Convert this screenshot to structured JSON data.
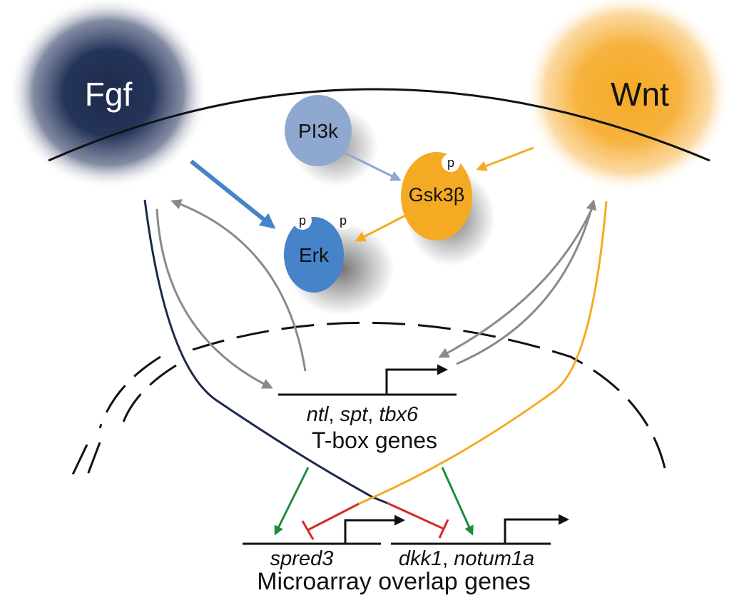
{
  "signals": {
    "fgf": "Fgf",
    "wnt": "Wnt"
  },
  "nodes": {
    "pi3k": "PI3k",
    "gsk3b": "Gsk3β",
    "erk": "Erk",
    "phospho": "p"
  },
  "tbox": {
    "genes": [
      "ntl",
      "spt",
      "tbx6"
    ],
    "sep": ", ",
    "title": "T-box genes"
  },
  "microarray": {
    "gene_left": "spred3",
    "gene_right_1": "dkk1",
    "gene_right_2": "notum1a",
    "sep": ", ",
    "title": "Microarray overlap genes"
  },
  "colors": {
    "fgf": "#1c2a4a",
    "wnt": "#f5aa23",
    "erk": "#4683c9",
    "pi3k": "#8fa8cf",
    "gsk3b": "#f5aa23",
    "activation_green": "#1e8c3a",
    "inhibition_red": "#d42a2a",
    "feedback_gray": "#8a8a8a"
  }
}
